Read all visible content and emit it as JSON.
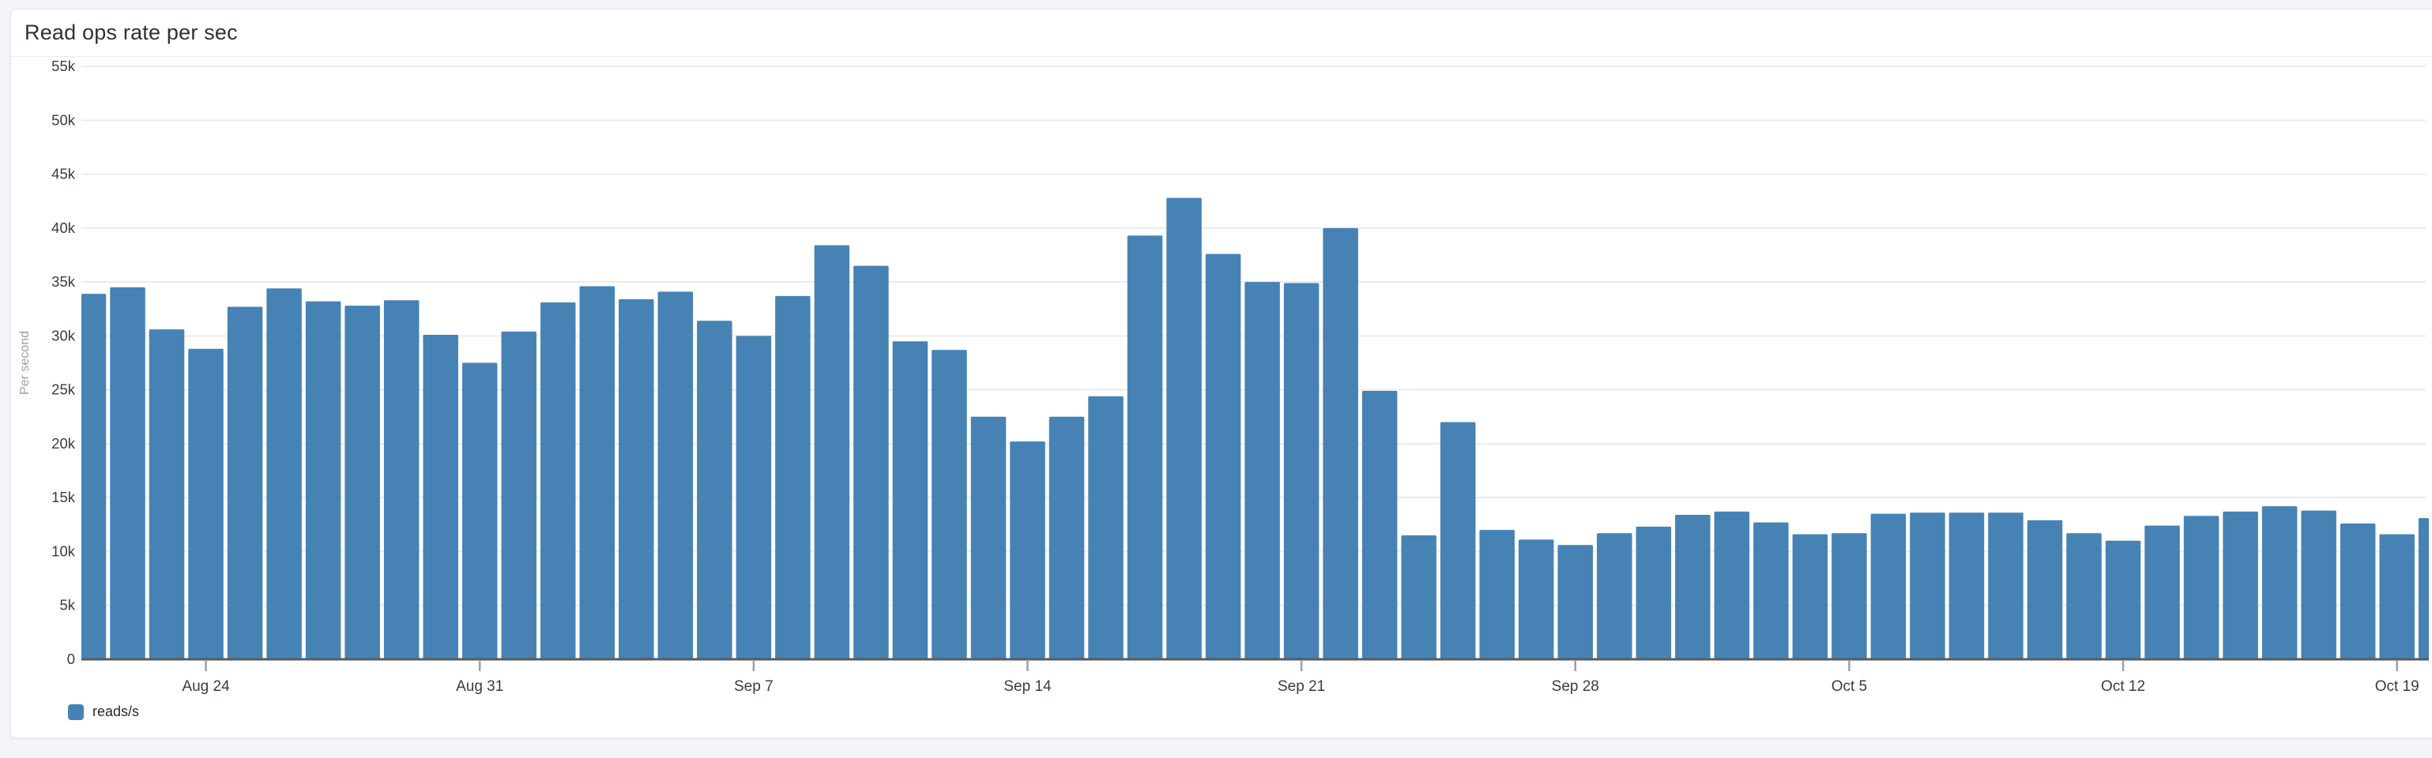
{
  "panel": {
    "title": "Read ops rate per sec"
  },
  "legend": {
    "items": [
      {
        "label": "reads/s",
        "color": "#4683b4"
      }
    ]
  },
  "colors": {
    "bar": "#4683b4",
    "page_background": "#f4f5f9",
    "panel_background": "#ffffff",
    "panel_border": "#e2e5ea",
    "gridline": "#ebebee",
    "axis_line": "#565c63",
    "tick_mark": "#9aa0a8",
    "axis_label_text": "#343d46",
    "y_axis_title_text": "#9aa0a8",
    "title_text": "#2a323a"
  },
  "chart_data": {
    "type": "bar",
    "title": "Read ops rate per sec",
    "series_name": "reads/s",
    "xlabel": "",
    "ylabel": "Per second",
    "ylim": [
      0,
      55000
    ],
    "ytick_step": 5000,
    "ytick_labels": [
      "0",
      "5k",
      "10k",
      "15k",
      "20k",
      "25k",
      "30k",
      "35k",
      "40k",
      "45k",
      "50k",
      "55k"
    ],
    "grid": true,
    "legend_position": "bottom-left",
    "x": [
      "Aug 21",
      "Aug 22",
      "Aug 23",
      "Aug 24",
      "Aug 25",
      "Aug 26",
      "Aug 27",
      "Aug 28",
      "Aug 29",
      "Aug 30",
      "Aug 31",
      "Sep 1",
      "Sep 2",
      "Sep 3",
      "Sep 4",
      "Sep 5",
      "Sep 6",
      "Sep 7",
      "Sep 8",
      "Sep 9",
      "Sep 10",
      "Sep 11",
      "Sep 12",
      "Sep 13",
      "Sep 14",
      "Sep 15",
      "Sep 16",
      "Sep 17",
      "Sep 18",
      "Sep 19",
      "Sep 20",
      "Sep 21",
      "Sep 22",
      "Sep 23",
      "Sep 24",
      "Sep 25",
      "Sep 26",
      "Sep 27",
      "Sep 28",
      "Sep 29",
      "Sep 30",
      "Oct 1",
      "Oct 2",
      "Oct 3",
      "Oct 4",
      "Oct 5",
      "Oct 6",
      "Oct 7",
      "Oct 8",
      "Oct 9",
      "Oct 10",
      "Oct 11",
      "Oct 12",
      "Oct 13",
      "Oct 14",
      "Oct 15",
      "Oct 16",
      "Oct 17",
      "Oct 18",
      "Oct 19",
      "Oct 20"
    ],
    "values": [
      33900,
      34500,
      30600,
      28800,
      32700,
      34400,
      33200,
      32800,
      33300,
      30100,
      27500,
      30400,
      33100,
      34600,
      33400,
      34100,
      31400,
      30000,
      33700,
      38400,
      36500,
      29500,
      28700,
      22500,
      20200,
      22500,
      24400,
      39300,
      42800,
      37600,
      35000,
      34900,
      40000,
      24900,
      11500,
      22000,
      12000,
      11100,
      10600,
      11700,
      12300,
      13400,
      13700,
      12700,
      11600,
      11700,
      13500,
      13600,
      13600,
      13600,
      12900,
      11700,
      11000,
      12400,
      13300,
      13700,
      14200,
      13800,
      12600,
      11600,
      13100
    ],
    "xticks": [
      {
        "index": 3,
        "label": "Aug 24"
      },
      {
        "index": 10,
        "label": "Aug 31"
      },
      {
        "index": 17,
        "label": "Sep 7"
      },
      {
        "index": 24,
        "label": "Sep 14"
      },
      {
        "index": 31,
        "label": "Sep 21"
      },
      {
        "index": 38,
        "label": "Sep 28"
      },
      {
        "index": 45,
        "label": "Oct 5"
      },
      {
        "index": 52,
        "label": "Oct 12"
      },
      {
        "index": 59,
        "label": "Oct 19"
      }
    ]
  }
}
